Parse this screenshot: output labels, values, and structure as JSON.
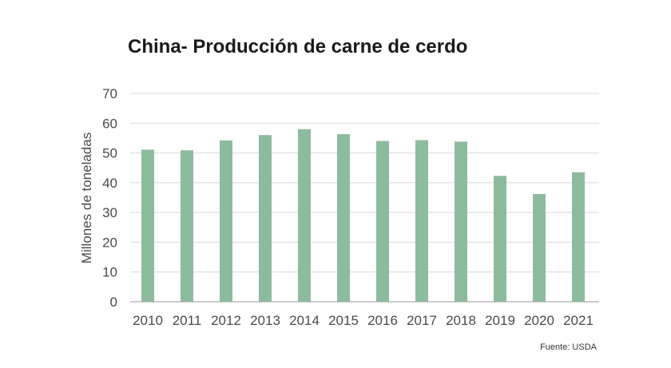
{
  "chart_data": {
    "type": "bar",
    "title": "China- Producción de carne de cerdo",
    "ylabel": "Millones de toneladas",
    "xlabel": "",
    "source": "Fuente: USDA",
    "categories": [
      "2010",
      "2011",
      "2012",
      "2013",
      "2014",
      "2015",
      "2016",
      "2017",
      "2018",
      "2019",
      "2020",
      "2021"
    ],
    "values": [
      51.1,
      50.9,
      54.2,
      56.0,
      58.0,
      56.3,
      54.0,
      54.3,
      53.8,
      42.3,
      36.2,
      43.5
    ],
    "ylim": [
      0,
      70
    ],
    "yticks": [
      "0",
      "10",
      "20",
      "30",
      "40",
      "50",
      "60",
      "70"
    ],
    "grid": true,
    "legend": "none",
    "bar_color": "#8dbb9e"
  }
}
